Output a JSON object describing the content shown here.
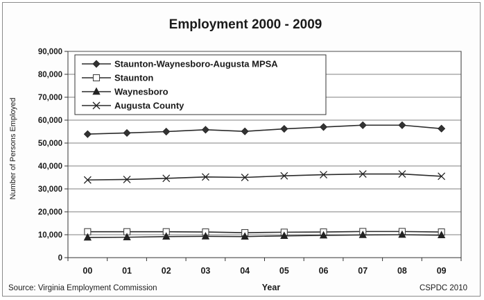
{
  "chart_data": {
    "type": "line",
    "title": "Employment 2000 - 2009",
    "xlabel": "Year",
    "ylabel": "Number of Persons Employed",
    "categories": [
      "00",
      "01",
      "02",
      "03",
      "04",
      "05",
      "06",
      "07",
      "08",
      "09"
    ],
    "ylim": [
      0,
      90000
    ],
    "yticks": [
      0,
      10000,
      20000,
      30000,
      40000,
      50000,
      60000,
      70000,
      80000,
      90000
    ],
    "ytick_labels": [
      "0",
      "10,000",
      "20,000",
      "30,000",
      "40,000",
      "50,000",
      "60,000",
      "70,000",
      "80,000",
      "90,000"
    ],
    "grid": true,
    "legend_position": "top-left",
    "series": [
      {
        "name": "Staunton-Waynesboro-Augusta MPSA",
        "marker": "diamond",
        "values": [
          53900,
          54400,
          55000,
          55800,
          55100,
          56200,
          57000,
          57800,
          57800,
          56300
        ]
      },
      {
        "name": "Staunton",
        "marker": "square",
        "values": [
          11300,
          11300,
          11300,
          11200,
          10900,
          11100,
          11200,
          11400,
          11400,
          11200
        ]
      },
      {
        "name": "Waynesboro",
        "marker": "triangle",
        "values": [
          8800,
          8900,
          9200,
          9300,
          9200,
          9500,
          9700,
          9900,
          10000,
          9800
        ]
      },
      {
        "name": "Augusta County",
        "marker": "x",
        "values": [
          33900,
          34100,
          34600,
          35200,
          35000,
          35700,
          36200,
          36500,
          36500,
          35500
        ]
      }
    ],
    "source": "Source: Virginia Employment Commission",
    "credit": "CSPDC 2010"
  }
}
